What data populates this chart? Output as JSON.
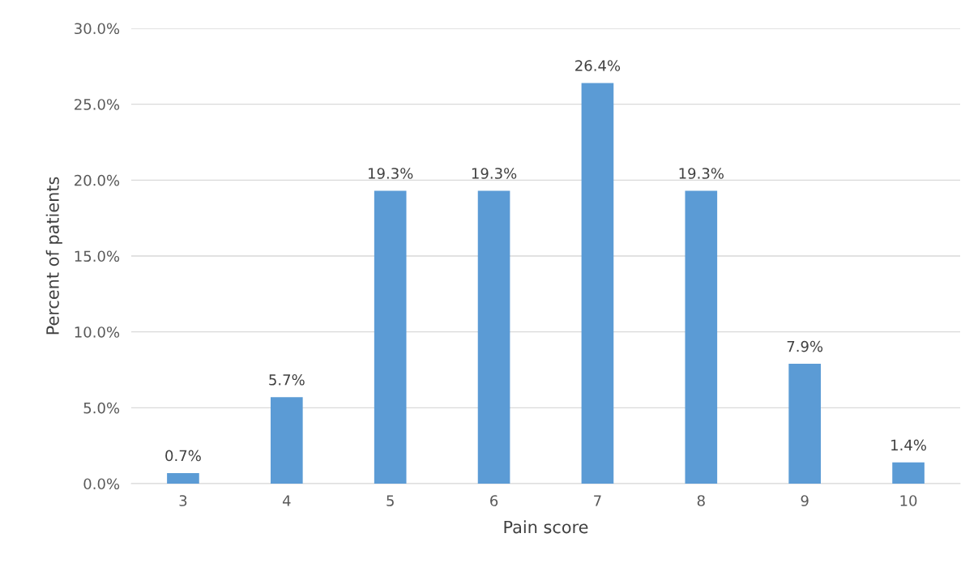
{
  "chart_data": {
    "type": "bar",
    "xlabel": "Pain score",
    "ylabel": "Percent of patients",
    "categories": [
      "3",
      "4",
      "5",
      "6",
      "7",
      "8",
      "9",
      "10"
    ],
    "values": [
      0.7,
      5.7,
      19.3,
      19.3,
      26.4,
      19.3,
      7.9,
      1.4
    ],
    "value_labels": [
      "0.7%",
      "5.7%",
      "19.3%",
      "19.3%",
      "26.4%",
      "19.3%",
      "7.9%",
      "1.4%"
    ],
    "color": "#5b9bd5",
    "ylim": [
      0,
      30
    ],
    "yticks": [
      {
        "value": 0,
        "label": "0.0%"
      },
      {
        "value": 5,
        "label": "5.0%"
      },
      {
        "value": 10,
        "label": "10.0%"
      },
      {
        "value": 15,
        "label": "15.0%"
      },
      {
        "value": 20,
        "label": "20.0%"
      },
      {
        "value": 25,
        "label": "25.0%"
      },
      {
        "value": 30,
        "label": "30.0%"
      }
    ],
    "grid": "y"
  }
}
